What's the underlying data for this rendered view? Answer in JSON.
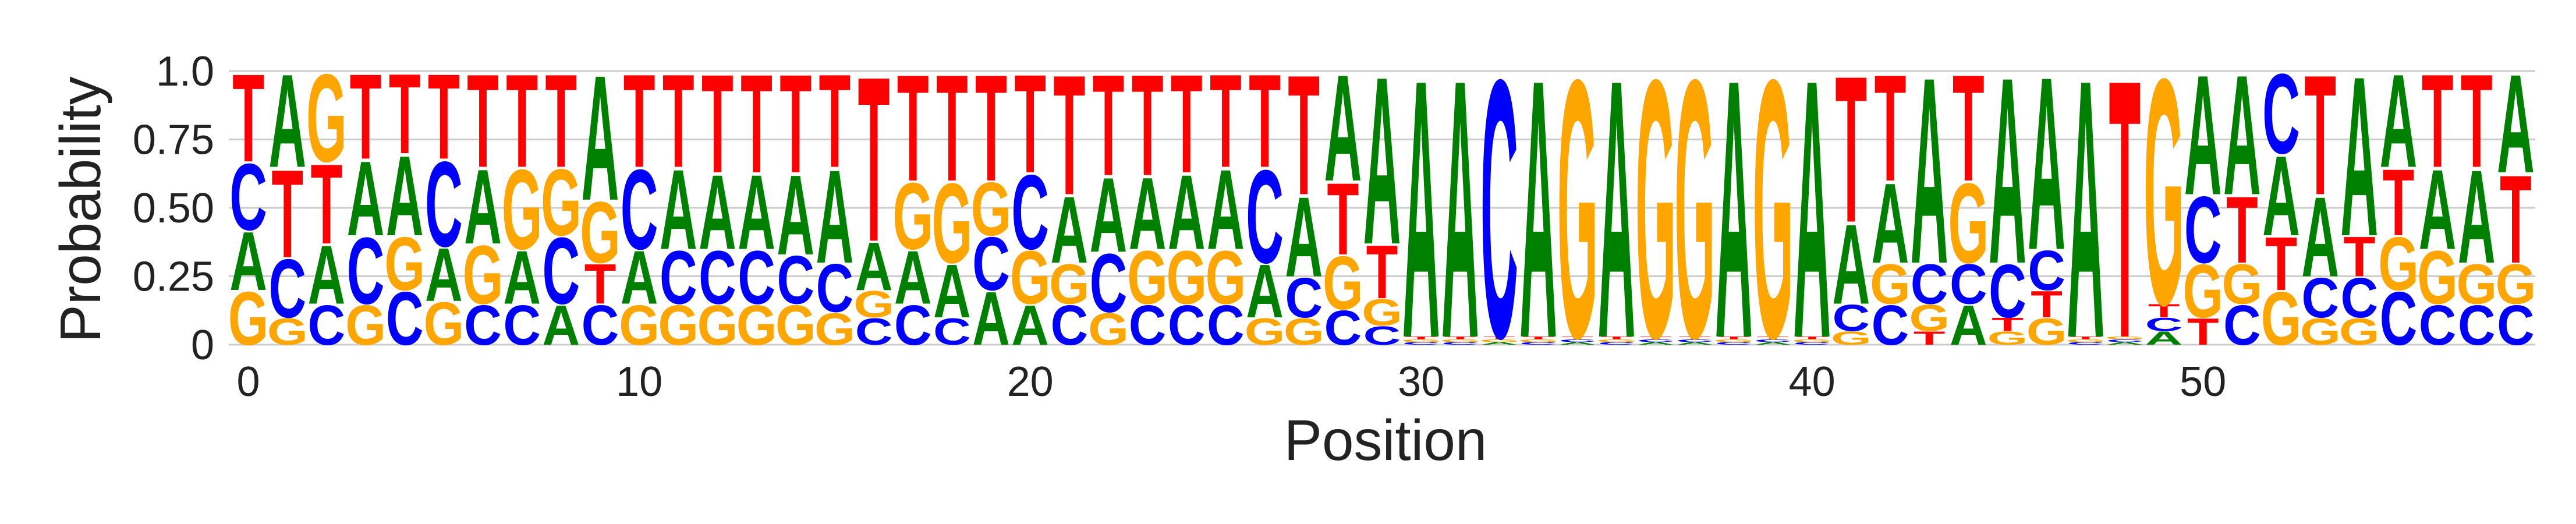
{
  "chart_data": {
    "type": "sequence-logo",
    "title": "",
    "xlabel": "Position",
    "ylabel": "Probability",
    "xlim": [
      -0.5,
      58.5
    ],
    "ylim": [
      0,
      1
    ],
    "x_ticks": [
      0,
      10,
      20,
      30,
      40,
      50
    ],
    "y_ticks": [
      0,
      0.25,
      0.5,
      0.75,
      1.0
    ],
    "y_tick_labels": [
      "0",
      "0.25",
      "0.50",
      "0.75",
      "1.0"
    ],
    "grid": "horizontal",
    "colors": {
      "A": "#008000",
      "C": "#0000ff",
      "G": "#ffa500",
      "T": "#ff0000"
    },
    "positions": [
      {
        "x": 0,
        "probs": {
          "A": 0.22,
          "C": 0.25,
          "G": 0.2,
          "T": 0.33
        }
      },
      {
        "x": 1,
        "probs": {
          "A": 0.35,
          "C": 0.22,
          "G": 0.1,
          "T": 0.33
        }
      },
      {
        "x": 2,
        "probs": {
          "A": 0.22,
          "C": 0.15,
          "G": 0.33,
          "T": 0.3
        }
      },
      {
        "x": 3,
        "probs": {
          "A": 0.28,
          "C": 0.25,
          "G": 0.15,
          "T": 0.32
        }
      },
      {
        "x": 4,
        "probs": {
          "A": 0.3,
          "C": 0.2,
          "G": 0.2,
          "T": 0.3
        }
      },
      {
        "x": 5,
        "probs": {
          "A": 0.2,
          "C": 0.32,
          "G": 0.16,
          "T": 0.32
        }
      },
      {
        "x": 6,
        "probs": {
          "A": 0.28,
          "C": 0.15,
          "G": 0.22,
          "T": 0.35
        }
      },
      {
        "x": 7,
        "probs": {
          "A": 0.2,
          "C": 0.15,
          "G": 0.3,
          "T": 0.35
        }
      },
      {
        "x": 8,
        "probs": {
          "A": 0.15,
          "C": 0.25,
          "G": 0.25,
          "T": 0.35
        }
      },
      {
        "x": 9,
        "probs": {
          "A": 0.47,
          "C": 0.15,
          "G": 0.23,
          "T": 0.15
        }
      },
      {
        "x": 10,
        "probs": {
          "A": 0.2,
          "C": 0.3,
          "G": 0.15,
          "T": 0.35
        }
      },
      {
        "x": 11,
        "probs": {
          "A": 0.3,
          "C": 0.2,
          "G": 0.15,
          "T": 0.35
        }
      },
      {
        "x": 12,
        "probs": {
          "A": 0.28,
          "C": 0.2,
          "G": 0.15,
          "T": 0.37
        }
      },
      {
        "x": 13,
        "probs": {
          "A": 0.28,
          "C": 0.2,
          "G": 0.15,
          "T": 0.37
        }
      },
      {
        "x": 14,
        "probs": {
          "A": 0.3,
          "C": 0.18,
          "G": 0.15,
          "T": 0.37
        }
      },
      {
        "x": 15,
        "probs": {
          "A": 0.35,
          "C": 0.18,
          "G": 0.12,
          "T": 0.35
        }
      },
      {
        "x": 16,
        "probs": {
          "A": 0.18,
          "C": 0.1,
          "G": 0.1,
          "T": 0.62
        }
      },
      {
        "x": 17,
        "probs": {
          "A": 0.2,
          "C": 0.15,
          "G": 0.25,
          "T": 0.4
        }
      },
      {
        "x": 18,
        "probs": {
          "A": 0.2,
          "C": 0.1,
          "G": 0.3,
          "T": 0.4
        }
      },
      {
        "x": 19,
        "probs": {
          "A": 0.2,
          "C": 0.2,
          "G": 0.2,
          "T": 0.4
        }
      },
      {
        "x": 20,
        "probs": {
          "A": 0.15,
          "C": 0.28,
          "G": 0.2,
          "T": 0.37
        }
      },
      {
        "x": 21,
        "probs": {
          "A": 0.25,
          "C": 0.15,
          "G": 0.15,
          "T": 0.45
        }
      },
      {
        "x": 22,
        "probs": {
          "A": 0.28,
          "C": 0.22,
          "G": 0.12,
          "T": 0.38
        }
      },
      {
        "x": 23,
        "probs": {
          "A": 0.27,
          "C": 0.15,
          "G": 0.2,
          "T": 0.38
        }
      },
      {
        "x": 24,
        "probs": {
          "A": 0.28,
          "C": 0.15,
          "G": 0.2,
          "T": 0.37
        }
      },
      {
        "x": 25,
        "probs": {
          "A": 0.3,
          "C": 0.15,
          "G": 0.2,
          "T": 0.35
        }
      },
      {
        "x": 26,
        "probs": {
          "A": 0.2,
          "C": 0.35,
          "G": 0.1,
          "T": 0.35
        }
      },
      {
        "x": 27,
        "probs": {
          "A": 0.3,
          "C": 0.15,
          "G": 0.1,
          "T": 0.45
        }
      },
      {
        "x": 28,
        "probs": {
          "A": 0.4,
          "C": 0.13,
          "G": 0.2,
          "T": 0.27
        }
      },
      {
        "x": 29,
        "probs": {
          "A": 0.63,
          "C": 0.07,
          "G": 0.1,
          "T": 0.2
        }
      },
      {
        "x": 30,
        "probs": {
          "A": 0.97,
          "C": 0.01,
          "G": 0.01,
          "T": 0.01
        }
      },
      {
        "x": 31,
        "probs": {
          "A": 0.97,
          "C": 0.01,
          "G": 0.01,
          "T": 0.01
        }
      },
      {
        "x": 32,
        "probs": {
          "A": 0.01,
          "C": 0.97,
          "G": 0.01,
          "T": 0.01
        }
      },
      {
        "x": 33,
        "probs": {
          "A": 0.97,
          "C": 0.01,
          "G": 0.01,
          "T": 0.01
        }
      },
      {
        "x": 34,
        "probs": {
          "A": 0.01,
          "C": 0.01,
          "G": 0.97,
          "T": 0.01
        }
      },
      {
        "x": 35,
        "probs": {
          "A": 0.97,
          "C": 0.01,
          "G": 0.01,
          "T": 0.01
        }
      },
      {
        "x": 36,
        "probs": {
          "A": 0.01,
          "C": 0.01,
          "G": 0.97,
          "T": 0.01
        }
      },
      {
        "x": 37,
        "probs": {
          "A": 0.01,
          "C": 0.01,
          "G": 0.97,
          "T": 0.01
        }
      },
      {
        "x": 38,
        "probs": {
          "A": 0.97,
          "C": 0.01,
          "G": 0.01,
          "T": 0.01
        }
      },
      {
        "x": 39,
        "probs": {
          "A": 0.01,
          "C": 0.01,
          "G": 0.97,
          "T": 0.01
        }
      },
      {
        "x": 40,
        "probs": {
          "A": 0.97,
          "C": 0.01,
          "G": 0.01,
          "T": 0.01
        }
      },
      {
        "x": 41,
        "probs": {
          "A": 0.3,
          "C": 0.1,
          "G": 0.05,
          "T": 0.55
        }
      },
      {
        "x": 42,
        "probs": {
          "A": 0.3,
          "C": 0.15,
          "G": 0.15,
          "T": 0.4
        }
      },
      {
        "x": 43,
        "probs": {
          "A": 0.7,
          "C": 0.15,
          "G": 0.1,
          "T": 0.05
        }
      },
      {
        "x": 44,
        "probs": {
          "A": 0.15,
          "C": 0.15,
          "G": 0.3,
          "T": 0.4
        }
      },
      {
        "x": 45,
        "probs": {
          "A": 0.7,
          "C": 0.2,
          "G": 0.05,
          "T": 0.05
        }
      },
      {
        "x": 46,
        "probs": {
          "A": 0.65,
          "C": 0.15,
          "G": 0.1,
          "T": 0.1
        }
      },
      {
        "x": 47,
        "probs": {
          "A": 0.97,
          "C": 0.01,
          "G": 0.01,
          "T": 0.01
        }
      },
      {
        "x": 48,
        "probs": {
          "A": 0.01,
          "C": 0.01,
          "G": 0.01,
          "T": 0.97
        }
      },
      {
        "x": 49,
        "probs": {
          "A": 0.05,
          "C": 0.05,
          "G": 0.85,
          "T": 0.05
        }
      },
      {
        "x": 50,
        "probs": {
          "A": 0.45,
          "C": 0.25,
          "G": 0.2,
          "T": 0.1
        }
      },
      {
        "x": 51,
        "probs": {
          "A": 0.45,
          "C": 0.15,
          "G": 0.15,
          "T": 0.25
        }
      },
      {
        "x": 52,
        "probs": {
          "A": 0.3,
          "C": 0.3,
          "G": 0.2,
          "T": 0.2
        }
      },
      {
        "x": 53,
        "probs": {
          "A": 0.3,
          "C": 0.15,
          "G": 0.1,
          "T": 0.45
        }
      },
      {
        "x": 54,
        "probs": {
          "A": 0.6,
          "C": 0.15,
          "G": 0.1,
          "T": 0.15
        }
      },
      {
        "x": 55,
        "probs": {
          "A": 0.35,
          "C": 0.2,
          "G": 0.2,
          "T": 0.25
        }
      },
      {
        "x": 56,
        "probs": {
          "A": 0.3,
          "C": 0.15,
          "G": 0.2,
          "T": 0.35
        }
      },
      {
        "x": 57,
        "probs": {
          "A": 0.35,
          "C": 0.15,
          "G": 0.15,
          "T": 0.35
        }
      },
      {
        "x": 58,
        "probs": {
          "A": 0.37,
          "C": 0.15,
          "G": 0.15,
          "T": 0.33
        }
      }
    ]
  }
}
